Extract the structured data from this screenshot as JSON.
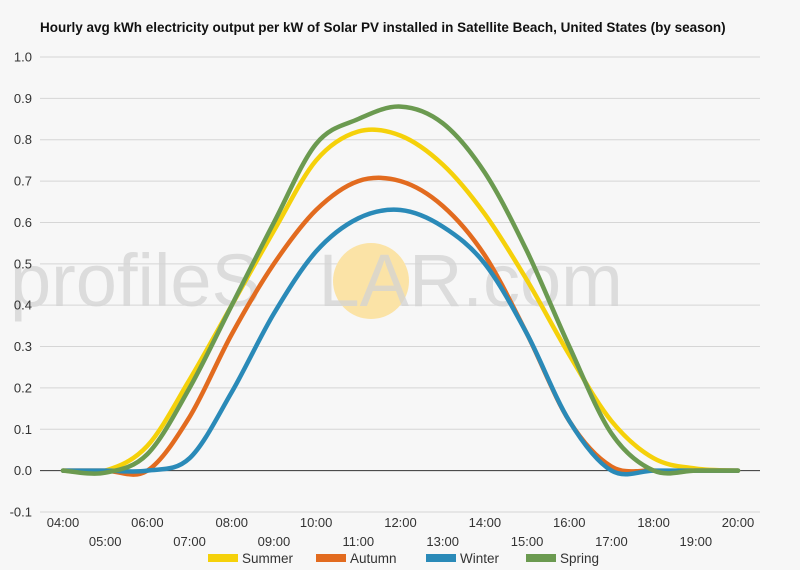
{
  "chart_data": {
    "type": "line",
    "title": "Hourly avg kWh electricity output per kW of Solar PV installed in Satellite Beach, United States (by season)",
    "xlabel": "",
    "ylabel": "",
    "ylim": [
      -0.1,
      1.0
    ],
    "yticks": [
      "1.0",
      "0.9",
      "0.8",
      "0.7",
      "0.6",
      "0.5",
      "0.4",
      "0.3",
      "0.2",
      "0.1",
      "0.0",
      "-0.1"
    ],
    "yticks_values": [
      1.0,
      0.9,
      0.8,
      0.7,
      0.6,
      0.5,
      0.4,
      0.3,
      0.2,
      0.1,
      0.0,
      -0.1
    ],
    "categories": [
      "04:00",
      "05:00",
      "06:00",
      "07:00",
      "08:00",
      "09:00",
      "10:00",
      "11:00",
      "12:00",
      "13:00",
      "14:00",
      "15:00",
      "16:00",
      "17:00",
      "18:00",
      "19:00",
      "20:00"
    ],
    "grid": true,
    "legend_position": "bottom",
    "watermark": {
      "left": "profileS",
      "middle": "O",
      "right": "LAR.com",
      "sun_color": "#fbe3a6"
    },
    "series": [
      {
        "name": "Summer",
        "color": "#f5d10a",
        "values": [
          0.0,
          0.0,
          0.06,
          0.22,
          0.4,
          0.58,
          0.75,
          0.82,
          0.81,
          0.74,
          0.62,
          0.46,
          0.28,
          0.12,
          0.03,
          0.005,
          0.0
        ]
      },
      {
        "name": "Autumn",
        "color": "#e26b1f",
        "values": [
          0.0,
          0.0,
          0.0,
          0.13,
          0.33,
          0.5,
          0.63,
          0.7,
          0.7,
          0.64,
          0.52,
          0.33,
          0.12,
          0.01,
          0.0,
          0.0,
          0.0
        ]
      },
      {
        "name": "Winter",
        "color": "#2a8ab8",
        "values": [
          0.0,
          0.0,
          0.0,
          0.03,
          0.19,
          0.38,
          0.53,
          0.61,
          0.63,
          0.59,
          0.5,
          0.33,
          0.12,
          0.0,
          0.0,
          0.0,
          0.0
        ]
      },
      {
        "name": "Spring",
        "color": "#6b9a50",
        "values": [
          0.0,
          -0.005,
          0.04,
          0.2,
          0.4,
          0.6,
          0.79,
          0.85,
          0.88,
          0.84,
          0.72,
          0.53,
          0.3,
          0.09,
          0.0,
          0.0,
          0.0
        ]
      }
    ]
  }
}
